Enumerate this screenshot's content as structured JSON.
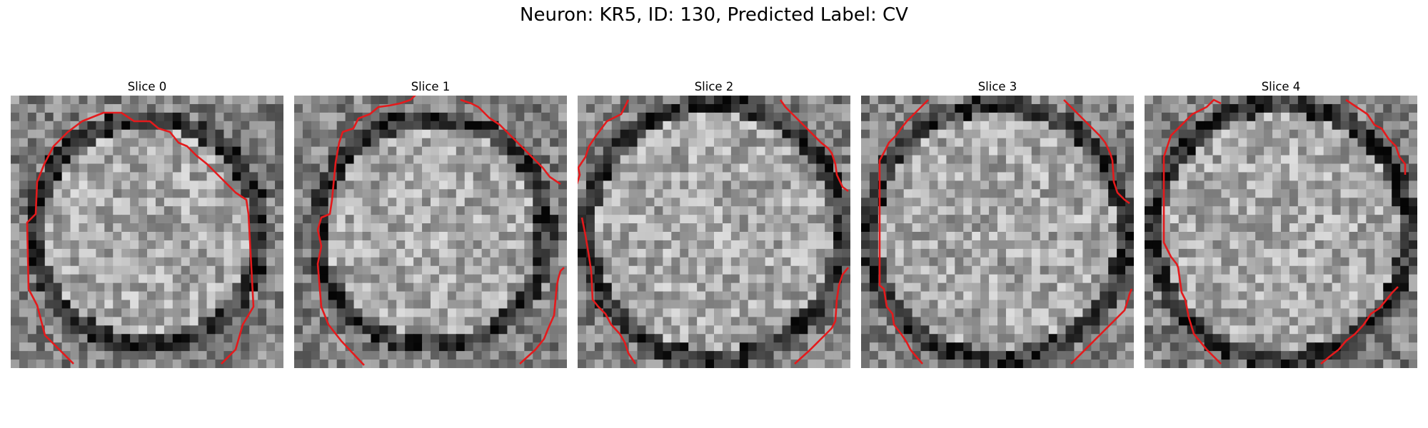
{
  "figure": {
    "title": "Neuron: KR5, ID: 130, Predicted Label: CV"
  },
  "panels": [
    {
      "title": "Slice 0",
      "seed": 11
    },
    {
      "title": "Slice 1",
      "seed": 23
    },
    {
      "title": "Slice 2",
      "seed": 37
    },
    {
      "title": "Slice 3",
      "seed": 41
    },
    {
      "title": "Slice 4",
      "seed": 53
    }
  ],
  "colors": {
    "contour": "#e41a1c",
    "background": "#ffffff"
  }
}
